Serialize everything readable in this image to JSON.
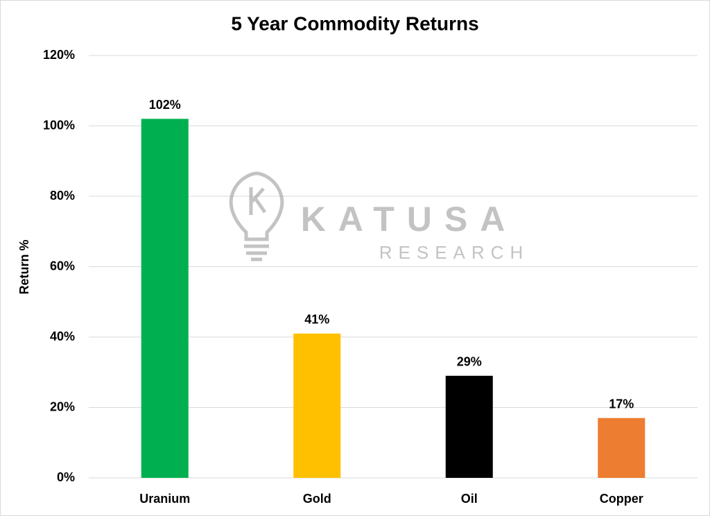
{
  "chart_data": {
    "type": "bar",
    "title": "5 Year Commodity Returns",
    "y_label": "Return %",
    "categories": [
      "Uranium",
      "Gold",
      "Oil",
      "Copper"
    ],
    "values": [
      102,
      41,
      29,
      17
    ],
    "value_labels": [
      "102%",
      "41%",
      "29%",
      "17%"
    ],
    "colors": [
      "#00b050",
      "#ffc000",
      "#000000",
      "#ed7d31"
    ],
    "ylim": [
      0,
      120
    ],
    "yticks": [
      {
        "value": 0,
        "label": "0%"
      },
      {
        "value": 20,
        "label": "20%"
      },
      {
        "value": 40,
        "label": "40%"
      },
      {
        "value": 60,
        "label": "60%"
      },
      {
        "value": 80,
        "label": "80%"
      },
      {
        "value": 100,
        "label": "100%"
      },
      {
        "value": 120,
        "label": "120%"
      }
    ],
    "grid": true,
    "watermark": [
      "KATUSA",
      "RESEARCH"
    ]
  }
}
